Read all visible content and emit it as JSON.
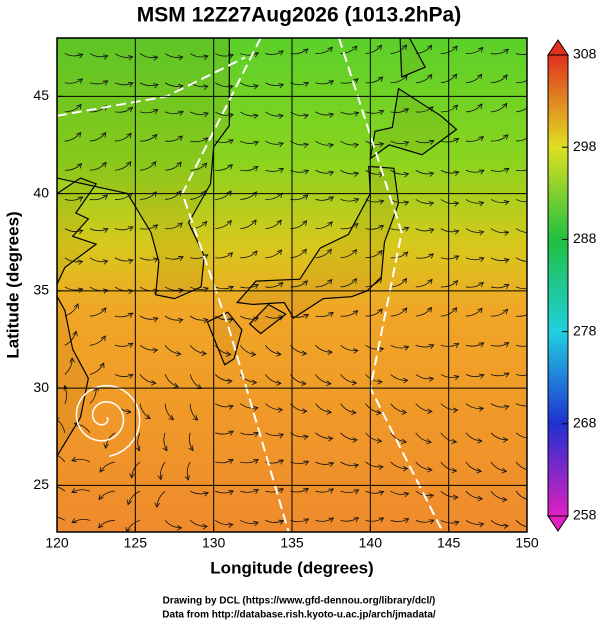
{
  "chart_data": {
    "type": "map",
    "title": "MSM 12Z27Aug2026 (1013.2hPa)",
    "x_label": "Longitude (degrees)",
    "y_label": "Latitude  (degrees)",
    "xlim": [
      120,
      150
    ],
    "xticks": [
      120,
      125,
      130,
      135,
      140,
      145,
      150
    ],
    "ylim": [
      22.6,
      48
    ],
    "yticks": [
      25,
      30,
      35,
      40,
      45
    ],
    "grid": true,
    "colorbar": {
      "lim": [
        258,
        308
      ],
      "ticks": [
        258,
        268,
        278,
        288,
        298,
        308
      ]
    },
    "credits": [
      "Drawing by DCL (https://www.gfd-dennou.org/library/dcl/)",
      "Data from http://database.rish.kyoto-u.ac.jp/arch/jmadata/"
    ]
  }
}
